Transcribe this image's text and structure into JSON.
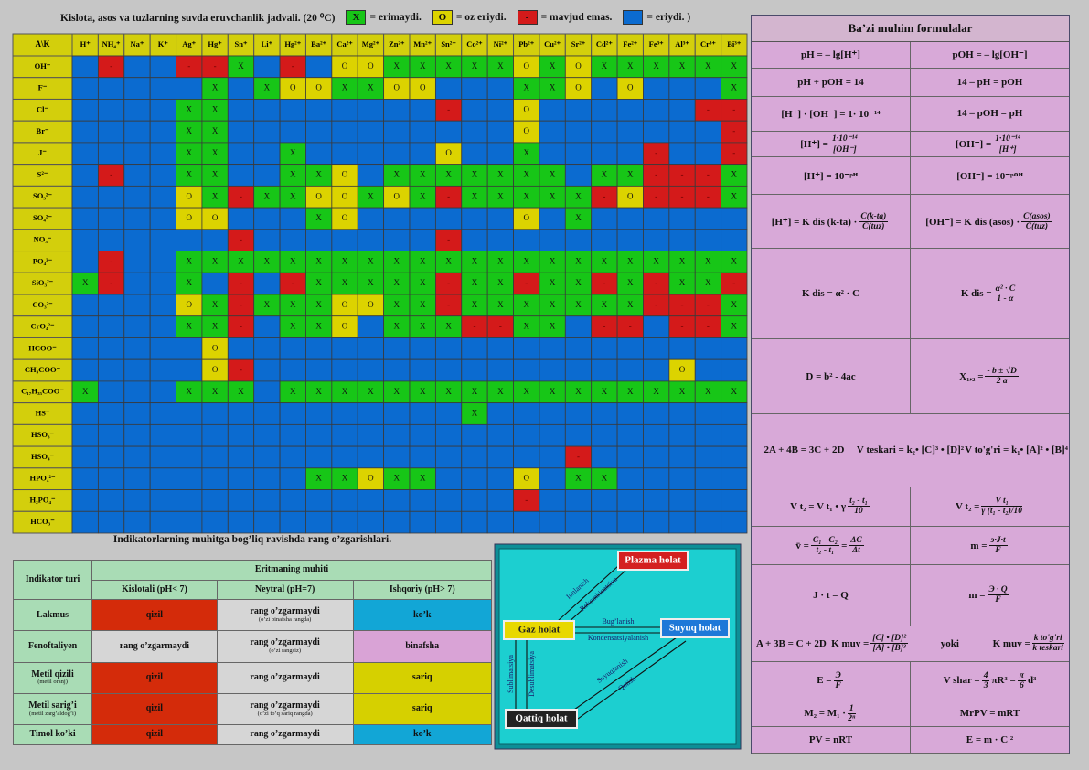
{
  "solubility": {
    "title": "Kislota, asos va tuzlarning suvda eruvchanlik jadvali. (20 ⁰C)",
    "legend": [
      {
        "symbol": "X",
        "label": "= erimaydi.",
        "color": "#17c617"
      },
      {
        "symbol": "O",
        "label": "= oz eriydi.",
        "color": "#dcd300"
      },
      {
        "symbol": "-",
        "label": "= mavjud emas.",
        "color": "#d41a1a"
      },
      {
        "label": "= eriydi. )",
        "color": "#0b6bd0"
      }
    ],
    "corner": "A\\K",
    "cations": [
      "H⁺",
      "NH₄⁺",
      "Na⁺",
      "K⁺",
      "Ag⁺",
      "Hg⁺",
      "Sn⁺",
      "Li⁺",
      "Hg²⁺",
      "Ba²⁺",
      "Ca²⁺",
      "Mg²⁺",
      "Zn²⁺",
      "Mn²⁺",
      "Sn²⁺",
      "Co²⁺",
      "Ni²⁺",
      "Pb²⁺",
      "Cu²⁺",
      "Sr²⁺",
      "Cd²⁺",
      "Fe²⁺",
      "Fe³⁺",
      "Al³⁺",
      "Cr³⁺",
      "Bi³⁺"
    ],
    "anions": [
      "OH⁻",
      "F⁻",
      "Cl⁻",
      "Br⁻",
      "J⁻",
      "S²⁻",
      "SO₃²⁻",
      "SO₄²⁻",
      "NO₃⁻",
      "PO₄³⁻",
      "SiO₃²⁻",
      "CO₃²⁻",
      "CrO₄²⁻",
      "HCOO⁻",
      "CH₃COO⁻",
      "C₁₇H₃₅COO⁻",
      "HS⁻",
      "HSO₃⁻",
      "HSO₄⁻",
      "HPO₄²⁻",
      "H₂PO₄⁻",
      "HCO₃⁻"
    ],
    "cells": [
      [
        null,
        "-",
        null,
        null,
        "-",
        "-",
        "X",
        null,
        "-",
        null,
        "O",
        "O",
        "X",
        "X",
        "X",
        "X",
        "X",
        "O",
        "X",
        "O",
        "X",
        "X",
        "X",
        "X",
        "X",
        "X"
      ],
      [
        null,
        null,
        null,
        null,
        null,
        "X",
        null,
        "X",
        "O",
        "O",
        "X",
        "X",
        "O",
        "O",
        null,
        null,
        null,
        "X",
        "X",
        "O",
        null,
        "O",
        null,
        null,
        null,
        "X"
      ],
      [
        null,
        null,
        null,
        null,
        "X",
        "X",
        null,
        null,
        null,
        null,
        null,
        null,
        null,
        null,
        "-",
        null,
        null,
        "O",
        null,
        null,
        null,
        null,
        null,
        null,
        "-",
        "-"
      ],
      [
        null,
        null,
        null,
        null,
        "X",
        "X",
        null,
        null,
        null,
        null,
        null,
        null,
        null,
        null,
        null,
        null,
        null,
        "O",
        null,
        null,
        null,
        null,
        null,
        null,
        null,
        "-"
      ],
      [
        null,
        null,
        null,
        null,
        "X",
        "X",
        null,
        null,
        "X",
        null,
        null,
        null,
        null,
        null,
        "O",
        null,
        null,
        "X",
        null,
        null,
        null,
        null,
        "-",
        null,
        null,
        "-"
      ],
      [
        null,
        "-",
        null,
        null,
        "X",
        "X",
        null,
        null,
        "X",
        "X",
        "O",
        null,
        "X",
        "X",
        "X",
        "X",
        "X",
        "X",
        "X",
        null,
        "X",
        "X",
        "-",
        "-",
        "-",
        "X"
      ],
      [
        null,
        null,
        null,
        null,
        "O",
        "X",
        "-",
        "X",
        "X",
        "O",
        "O",
        "X",
        "O",
        "X",
        "-",
        "X",
        "X",
        "X",
        "X",
        "X",
        "-",
        "O",
        "-",
        "-",
        "-",
        "X"
      ],
      [
        null,
        null,
        null,
        null,
        "O",
        "O",
        null,
        null,
        null,
        "X",
        "O",
        null,
        null,
        null,
        null,
        null,
        null,
        "O",
        null,
        "X",
        null,
        null,
        null,
        null,
        null,
        null
      ],
      [
        null,
        null,
        null,
        null,
        null,
        null,
        "-",
        null,
        null,
        null,
        null,
        null,
        null,
        null,
        "-",
        null,
        null,
        null,
        null,
        null,
        null,
        null,
        null,
        null,
        null,
        null
      ],
      [
        null,
        "-",
        null,
        null,
        "X",
        "X",
        "X",
        "X",
        "X",
        "X",
        "X",
        "X",
        "X",
        "X",
        "X",
        "X",
        "X",
        "X",
        "X",
        "X",
        "X",
        "X",
        "X",
        "X",
        "X",
        "X"
      ],
      [
        "X",
        "-",
        null,
        null,
        "X",
        null,
        "-",
        null,
        "-",
        "X",
        "X",
        "X",
        "X",
        "X",
        "-",
        "X",
        "X",
        "-",
        "X",
        "X",
        "-",
        "X",
        "-",
        "X",
        "X",
        "-"
      ],
      [
        null,
        null,
        null,
        null,
        "O",
        "X",
        "-",
        "X",
        "X",
        "X",
        "O",
        "O",
        "X",
        "X",
        "-",
        "X",
        "X",
        "X",
        "X",
        "X",
        "X",
        "X",
        "-",
        "-",
        "-",
        "X"
      ],
      [
        null,
        null,
        null,
        null,
        "X",
        "X",
        "-",
        null,
        "X",
        "X",
        "O",
        null,
        "X",
        "X",
        "X",
        "-",
        "-",
        "X",
        "X",
        null,
        "-",
        "-",
        null,
        "-",
        "-",
        "X"
      ],
      [
        null,
        null,
        null,
        null,
        null,
        "O",
        null,
        null,
        null,
        null,
        null,
        null,
        null,
        null,
        null,
        null,
        null,
        null,
        null,
        null,
        null,
        null,
        null,
        null,
        null,
        null
      ],
      [
        null,
        null,
        null,
        null,
        null,
        "O",
        "-",
        null,
        null,
        null,
        null,
        null,
        null,
        null,
        null,
        null,
        null,
        null,
        null,
        null,
        null,
        null,
        null,
        "O",
        null,
        null
      ],
      [
        "X",
        null,
        null,
        null,
        "X",
        "X",
        "X",
        null,
        "X",
        "X",
        "X",
        "X",
        "X",
        "X",
        "X",
        "X",
        "X",
        "X",
        "X",
        "X",
        "X",
        "X",
        "X",
        "X",
        "X",
        "X"
      ],
      [
        null,
        null,
        null,
        null,
        null,
        null,
        null,
        null,
        null,
        null,
        null,
        null,
        null,
        null,
        null,
        "X",
        null,
        null,
        null,
        null,
        null,
        null,
        null,
        null,
        null,
        null
      ],
      [
        null,
        null,
        null,
        null,
        null,
        null,
        null,
        null,
        null,
        null,
        null,
        null,
        null,
        null,
        null,
        null,
        null,
        null,
        null,
        null,
        null,
        null,
        null,
        null,
        null,
        null
      ],
      [
        null,
        null,
        null,
        null,
        null,
        null,
        null,
        null,
        null,
        null,
        null,
        null,
        null,
        null,
        null,
        null,
        null,
        null,
        null,
        "-",
        null,
        null,
        null,
        null,
        null,
        null
      ],
      [
        null,
        null,
        null,
        null,
        null,
        null,
        null,
        null,
        null,
        "X",
        "X",
        "O",
        "X",
        "X",
        null,
        null,
        null,
        "O",
        null,
        "X",
        "X",
        null,
        null,
        null,
        null,
        null
      ],
      [
        null,
        null,
        null,
        null,
        null,
        null,
        null,
        null,
        null,
        null,
        null,
        null,
        null,
        null,
        null,
        null,
        null,
        "-",
        null,
        null,
        null,
        null,
        null,
        null,
        null,
        null
      ],
      [
        null,
        null,
        null,
        null,
        null,
        null,
        null,
        null,
        null,
        null,
        null,
        null,
        null,
        null,
        null,
        null,
        null,
        null,
        null,
        null,
        null,
        null,
        null,
        null,
        null,
        null
      ]
    ]
  },
  "indicators": {
    "title": "Indikatorlarning muhitga bog’liq ravishda rang o’zgarishlari.",
    "type_header": "Indikator turi",
    "group_header": "Eritmaning  muhiti",
    "media": [
      "Kislotali (pH< 7)",
      "Neytral (pH=7)",
      "Ishqoriy (pH> 7)"
    ],
    "rows": [
      {
        "name": "Lakmus",
        "cells": [
          {
            "text": "qizil",
            "color": "#d42b0a"
          },
          {
            "text": "rang o’zgarmaydi",
            "note": "(o’zi binafsha rangda)",
            "color": "#d6d6d6"
          },
          {
            "text": "ko’k",
            "color": "#12a6d6"
          }
        ]
      },
      {
        "name": "Fenoftaliyen",
        "cells": [
          {
            "text": "rang o’zgarmaydi",
            "color": "#d6d6d6"
          },
          {
            "text": "rang o’zgarmaydi",
            "note": "(o’zi rangsiz)",
            "color": "#d6d6d6"
          },
          {
            "text": "binafsha",
            "color": "#d9a3d6"
          }
        ]
      },
      {
        "name": "Metil qizili",
        "sub": "(metil oranj)",
        "cells": [
          {
            "text": "qizil",
            "color": "#d42b0a"
          },
          {
            "text": "rang o’zgarmaydi",
            "color": "#d6d6d6"
          },
          {
            "text": "sariq",
            "color": "#d6d000"
          }
        ]
      },
      {
        "name": "Metil sarig’i",
        "sub": "(metil  zarg’aldog’i)",
        "cells": [
          {
            "text": "qizil",
            "color": "#d42b0a"
          },
          {
            "text": "rang o’zgarmaydi",
            "note": "(o’zi to’q sariq rangda)",
            "color": "#d6d6d6"
          },
          {
            "text": "sariq",
            "color": "#d6d000"
          }
        ]
      },
      {
        "name": "Timol ko’ki",
        "cells": [
          {
            "text": "qizil",
            "color": "#d42b0a"
          },
          {
            "text": "rang o’zgarmaydi",
            "color": "#d6d6d6"
          },
          {
            "text": "ko’k",
            "color": "#12a6d6"
          }
        ]
      }
    ]
  },
  "states": {
    "nodes": [
      {
        "label": "Plazma holat",
        "color": "#d42020"
      },
      {
        "label": "Gaz holat",
        "color": "#e8d800"
      },
      {
        "label": "Suyuq holat",
        "color": "#1e78d8"
      },
      {
        "label": "Qattiq holat",
        "color": "#222222"
      }
    ],
    "edges": [
      "Ionlanish",
      "Rekombinatsiya",
      "Bug’lanish",
      "Kondensatsiyalanish",
      "Sublimatsiya",
      "Desublimatsiya",
      "Suyuqlanish",
      "Qotish"
    ]
  },
  "formulas": {
    "title": "Ba’zi muhim formulalar",
    "rows": [
      [
        [
          "pH = – lg[H⁺]"
        ],
        [
          "pOH = – lg[OH⁻]"
        ]
      ],
      [
        [
          "pH + pOH = 14"
        ],
        [
          "14 – pH = pOH"
        ]
      ],
      [
        [
          "[H⁺] · [OH⁻] = 1· 10⁻¹⁴"
        ],
        [
          "14 – pOH = pH"
        ]
      ],
      [
        [
          "[H⁺] = ",
          {
            "num": "1·10⁻¹⁴",
            "den": "[OH⁻]"
          }
        ],
        [
          "[OH⁻] = ",
          {
            "num": "1·10⁻¹⁴",
            "den": "[H⁺]"
          }
        ]
      ],
      [
        [
          "[H⁺] = 10⁻ᵖᴴ"
        ],
        [
          "[OH⁻] = 10⁻ᵖᴼᴴ"
        ]
      ],
      [
        [
          "[H⁺] = K dis (k-ta) · ",
          {
            "num": "C(k-ta)",
            "den": "C(tuz)"
          }
        ],
        [
          "[OH⁻] = K dis (asos) · ",
          {
            "num": "C(asos)",
            "den": "C(tuz)"
          }
        ]
      ],
      [
        [
          "K dis = α² · C"
        ],
        [
          "K dis = ",
          {
            "num": "α² · C",
            "den": "1 - α"
          }
        ]
      ],
      [
        [
          "D = b² - 4ac"
        ],
        [
          "X₁,₂ = ",
          {
            "num": "- b ± √D",
            "den": "2 a"
          }
        ]
      ],
      [
        [
          "2A + 4B = 3C + 2D"
        ],
        [
          "V teskari = k₂• [C]³ • [D]²"
        ],
        [
          "V to'g'ri = k₁• [A]² • [B]⁴"
        ]
      ],
      [
        [
          "V t₂ = V t₁ • γ ",
          {
            "num": "t₂ - t₁",
            "den": "10"
          }
        ],
        [
          "V t₂ = ",
          {
            "num": "V t₁",
            "den": "γ (t₁ - t₂)/10"
          }
        ]
      ],
      [
        [
          "v̄ = ",
          {
            "num": "C₁ - C₂",
            "den": "t₂ - t₁"
          },
          " = ",
          {
            "num": "ΔC",
            "den": "Δt"
          }
        ],
        [
          "m = ",
          {
            "num": "э·J·t",
            "den": "F"
          }
        ]
      ],
      [
        [
          "J · t = Q"
        ],
        [
          "m = ",
          {
            "num": "Э · Q",
            "den": "F"
          }
        ]
      ],
      [
        [
          "A + 3B = C + 2D"
        ],
        [
          "K muv = ",
          {
            "num": "[C] • [D]²",
            "den": "[A] • [B]³"
          }
        ],
        [
          "yoki"
        ],
        [
          "K muv = ",
          {
            "num": "k to'g'ri",
            "den": "k teskari"
          }
        ]
      ],
      [
        [
          "E = ",
          {
            "num": "Э",
            "den": "F"
          }
        ],
        [
          "V shar = ",
          {
            "num": "4",
            "den": "3"
          },
          " πR³ = ",
          {
            "num": "π",
            "den": "6"
          },
          " d³"
        ]
      ],
      [
        [
          "M₂ = M₁ · ",
          {
            "num": "1",
            "den": "2ⁿ"
          }
        ],
        [
          "MrPV = mRT"
        ]
      ],
      [
        [
          "PV = nRT"
        ],
        [
          "E = m · C ²"
        ]
      ]
    ]
  }
}
